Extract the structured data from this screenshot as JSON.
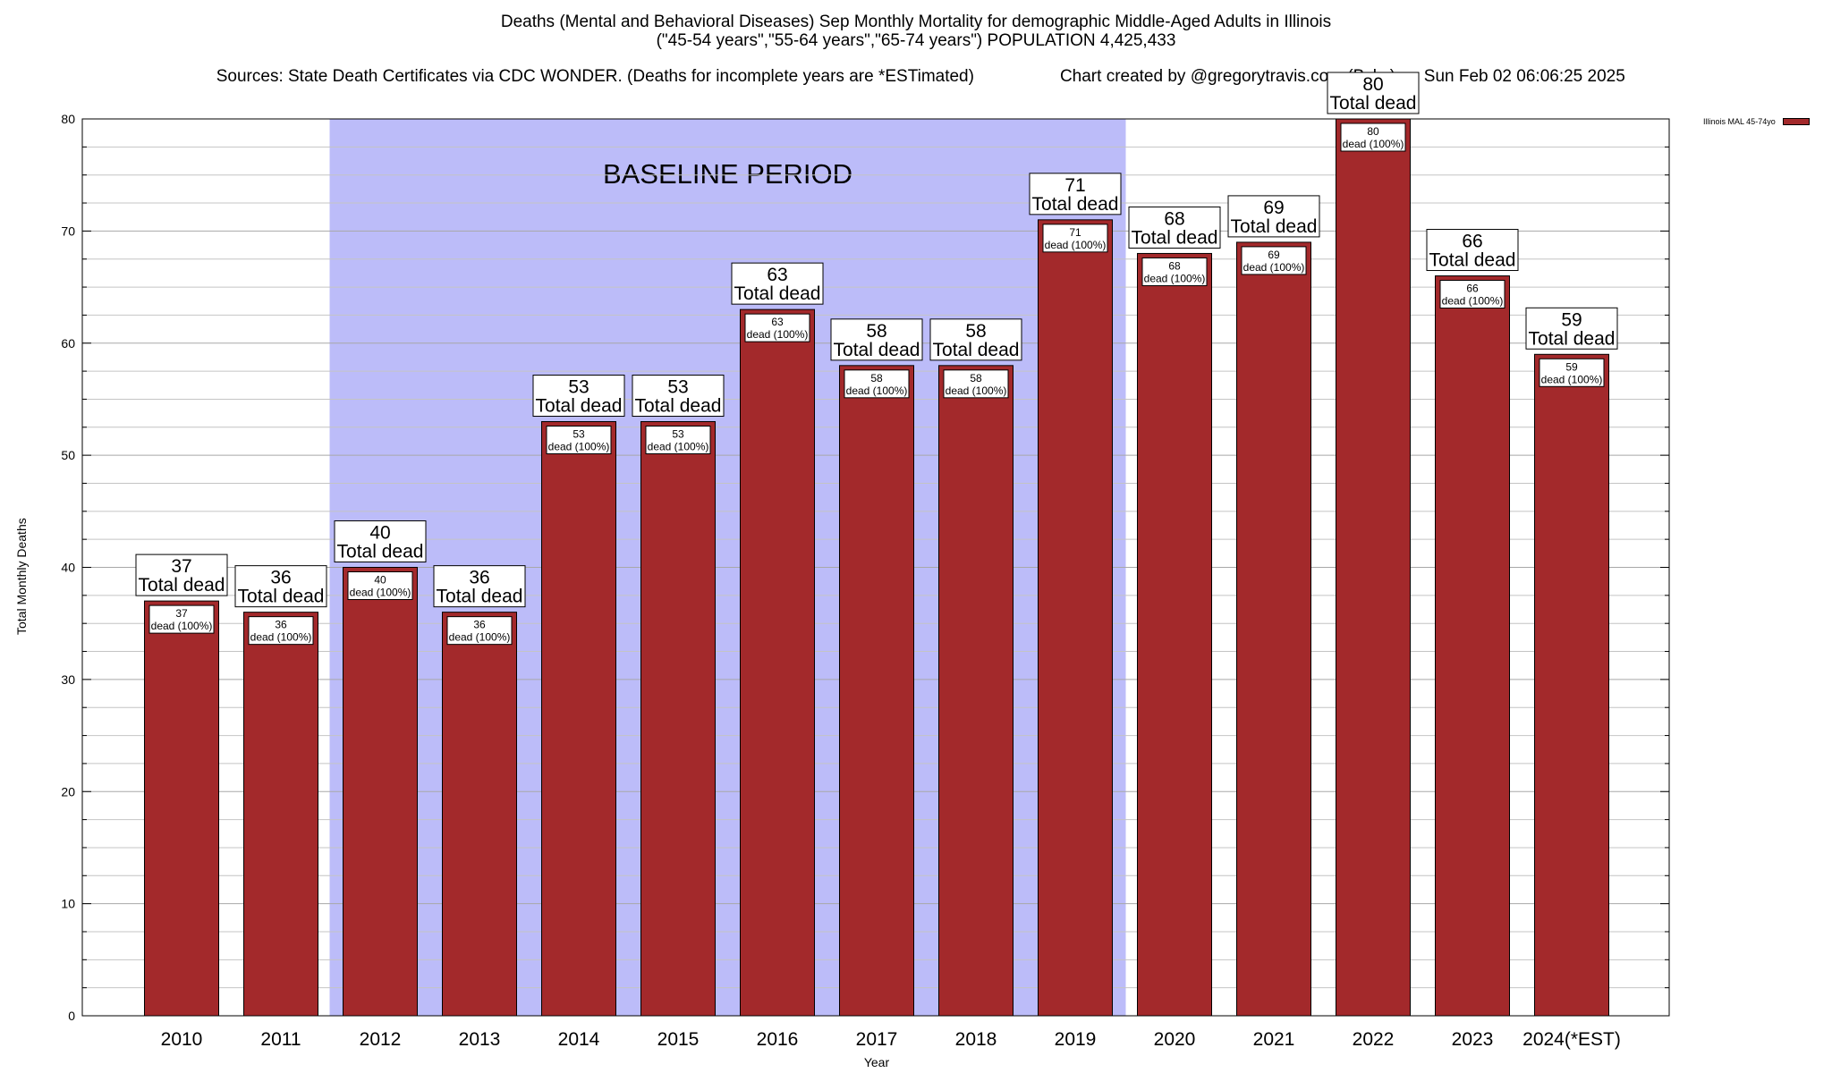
{
  "header": {
    "title_line1": "Deaths (Mental and Behavioral Diseases) Sep Monthly Mortality for demographic Middle-Aged Adults in Illinois",
    "title_line2": "(\"45-54 years\",\"55-64 years\",\"65-74 years\") POPULATION 4,425,433",
    "sources": "Sources: State Death Certificates via CDC WONDER. (Deaths for incomplete years are *ESTimated)",
    "credit": "Chart created by @gregorytravis.com (Bsky) on Sun Feb 02 06:06:25 2025"
  },
  "chart_data": {
    "type": "bar",
    "categories": [
      "2010",
      "2011",
      "2012",
      "2013",
      "2014",
      "2015",
      "2016",
      "2017",
      "2018",
      "2019",
      "2020",
      "2021",
      "2022",
      "2023",
      "2024(*EST)"
    ],
    "series": [
      {
        "name": "Illinois MAL 45-74yo",
        "values": [
          37,
          36,
          40,
          36,
          53,
          53,
          63,
          58,
          58,
          71,
          68,
          69,
          80,
          66,
          59
        ],
        "color": "#a3292b"
      }
    ],
    "xlabel": "Year",
    "ylabel": "Total Monthly Deaths",
    "ylim": [
      0,
      80
    ],
    "yticks": [
      0,
      10,
      20,
      30,
      40,
      50,
      60,
      70,
      80
    ],
    "grid": true,
    "legend_position": "top-right",
    "baseline": {
      "label": "BASELINE PERIOD",
      "from": "2012",
      "to": "2019",
      "color": "#bcbcf9"
    },
    "total_label_suffix": "Total dead",
    "inner_label_suffix": "dead (100%)"
  }
}
